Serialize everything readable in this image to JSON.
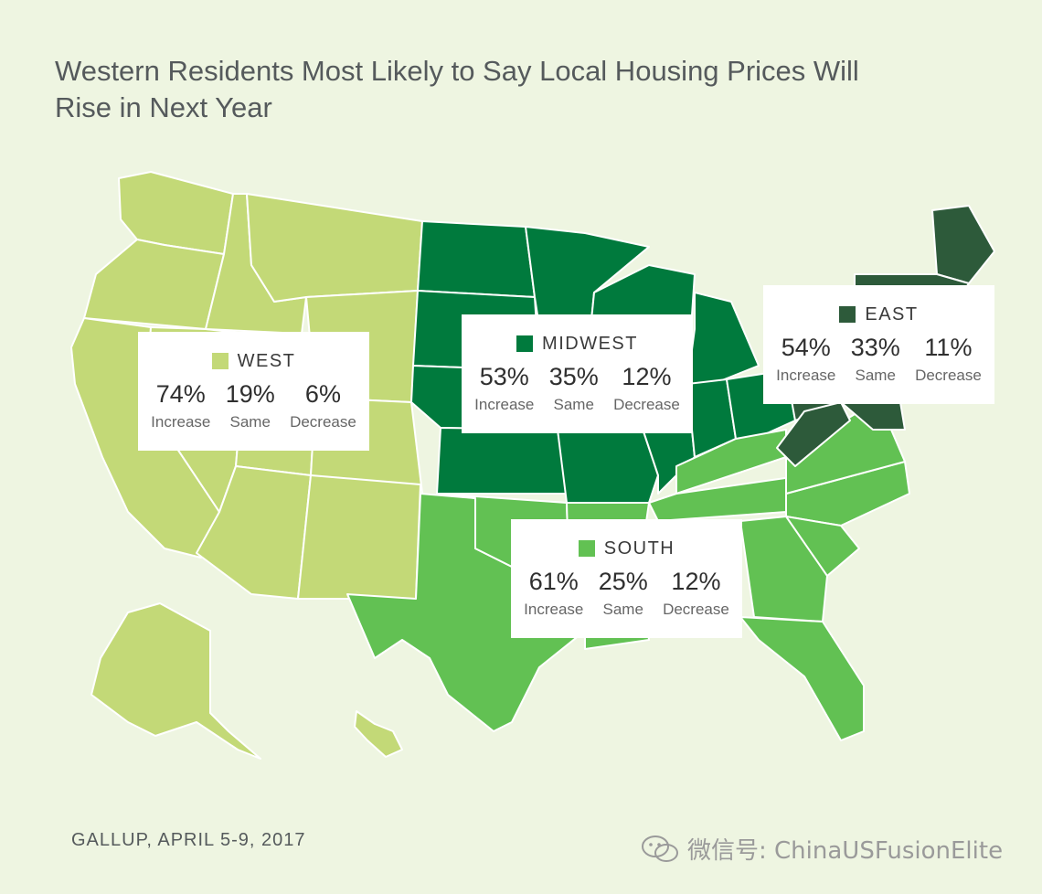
{
  "title": "Western Residents Most Likely to Say Local Housing Prices Will Rise in Next Year",
  "regions": {
    "west": {
      "name": "WEST",
      "color": "#c3d977",
      "increase": "74%",
      "same": "19%",
      "decrease": "6%"
    },
    "midwest": {
      "name": "MIDWEST",
      "color": "#007a3d",
      "increase": "53%",
      "same": "35%",
      "decrease": "12%"
    },
    "east": {
      "name": "EAST",
      "color": "#2d5a3a",
      "increase": "54%",
      "same": "33%",
      "decrease": "11%"
    },
    "south": {
      "name": "SOUTH",
      "color": "#62c153",
      "increase": "61%",
      "same": "25%",
      "decrease": "12%"
    }
  },
  "labels": {
    "increase": "Increase",
    "same": "Same",
    "decrease": "Decrease"
  },
  "source": "GALLUP, APRIL 5-9, 2017",
  "watermark": "微信号: ChinaUSFusionElite"
}
